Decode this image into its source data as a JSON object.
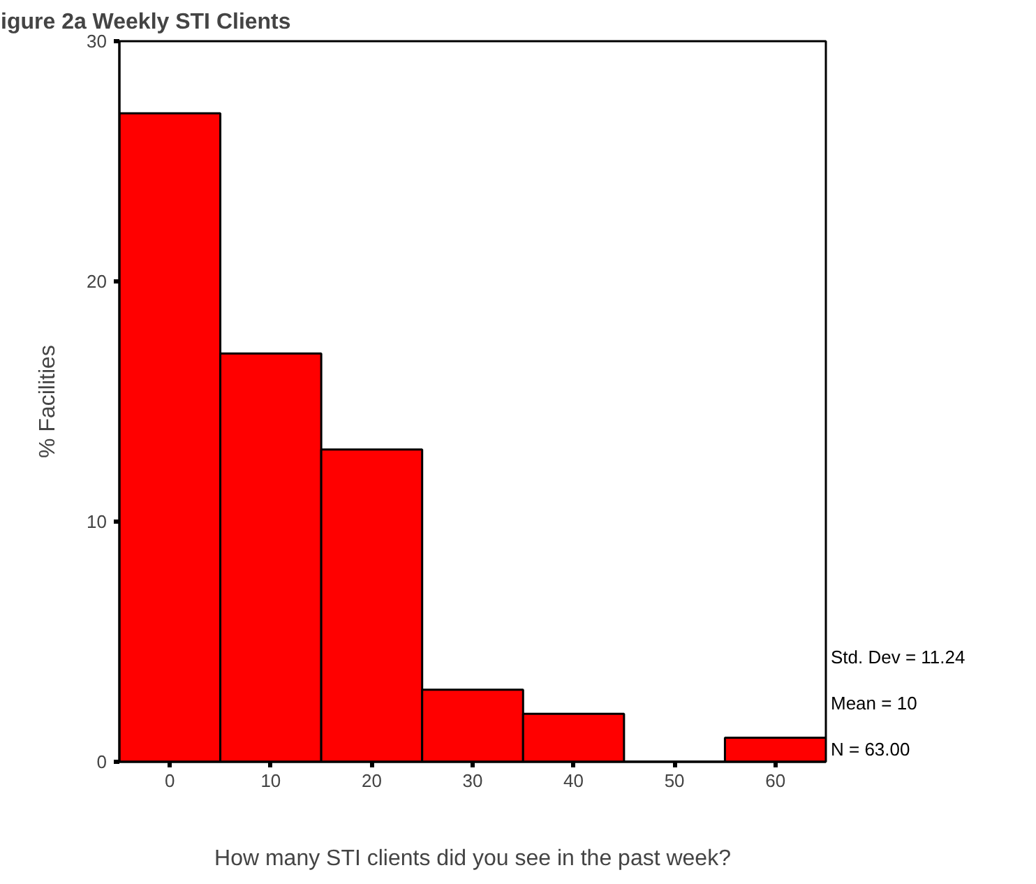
{
  "chart_data": {
    "type": "histogram",
    "title": "igure 2a Weekly STI Clients",
    "xlabel": "How many STI clients did you see in the past week?",
    "ylabel": "% Facilities",
    "bins": [
      -5,
      5,
      15,
      25,
      35,
      45,
      55,
      65
    ],
    "values": [
      27,
      17,
      13,
      3,
      2,
      0,
      1
    ],
    "color": "#ff0000",
    "xlim": [
      -5,
      65
    ],
    "xticks": [
      0,
      10,
      20,
      30,
      40,
      50,
      60
    ],
    "ylim": [
      0,
      30
    ],
    "yticks": [
      0,
      10,
      20,
      30
    ],
    "grid": false,
    "annotations": [
      "Std. Dev = 11.24",
      "Mean = 10",
      "N = 63.00"
    ]
  }
}
